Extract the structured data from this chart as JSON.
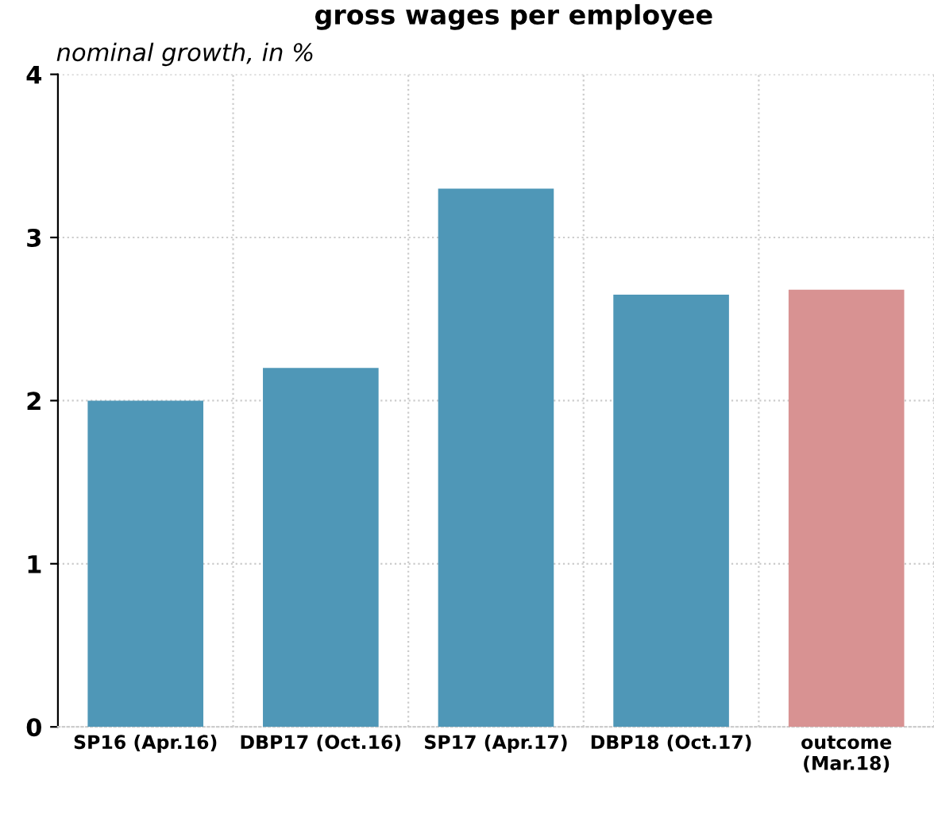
{
  "chart_data": {
    "type": "bar",
    "title": "gross wages per employee",
    "subtitle": "nominal growth, in %",
    "categories": [
      "SP16 (Apr.16)",
      "DBP17 (Oct.16)",
      "SP17 (Apr.17)",
      "DBP18 (Oct.17)",
      "outcome\n(Mar.18)"
    ],
    "values": [
      2.0,
      2.2,
      3.3,
      2.65,
      2.68
    ],
    "colors": [
      "#4f97b7",
      "#4f97b7",
      "#4f97b7",
      "#4f97b7",
      "#d89292"
    ],
    "ylim": [
      0,
      4
    ],
    "yticks": [
      0,
      1,
      2,
      3,
      4
    ],
    "grid": true
  }
}
